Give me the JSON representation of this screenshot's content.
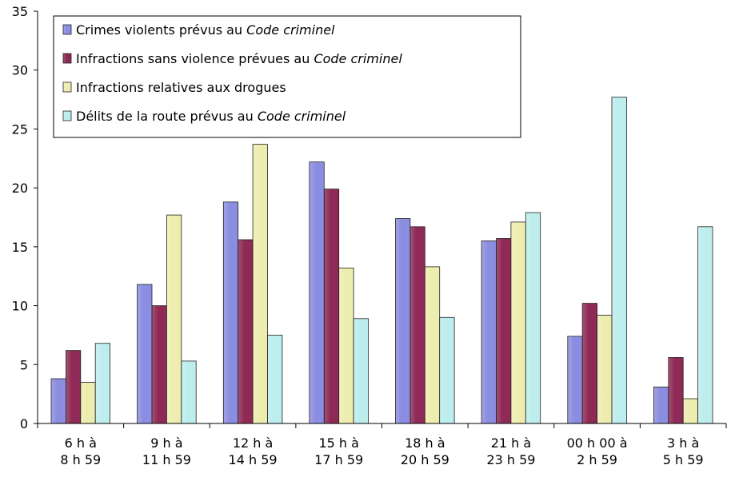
{
  "chart_data": {
    "type": "bar",
    "title": "",
    "xlabel": "",
    "ylabel": "",
    "ylim": [
      0,
      35
    ],
    "y_ticks": [
      "0",
      "5",
      "10",
      "15",
      "20",
      "25",
      "30",
      "35"
    ],
    "grid": false,
    "legend_position": "top-left",
    "categories": [
      [
        "6 h à",
        "8 h 59"
      ],
      [
        "9 h à",
        "11 h 59"
      ],
      [
        "12 h à",
        "14 h 59"
      ],
      [
        "15 h à",
        "17 h 59"
      ],
      [
        "18 h à",
        "20 h 59"
      ],
      [
        "21 h à",
        "23 h 59"
      ],
      [
        "00 h 00 à",
        "2 h 59"
      ],
      [
        "3 h à",
        "5 h 59"
      ]
    ],
    "series": [
      {
        "name": "Crimes violents prévus au Code criminel",
        "name_parts": [
          "Crimes violents prévus au ",
          "Code criminel"
        ],
        "color": "#8B8DE0",
        "values": [
          3.8,
          11.8,
          18.8,
          22.2,
          17.4,
          15.5,
          7.4,
          3.1
        ]
      },
      {
        "name": "Infractions sans violence prévues au Code criminel",
        "name_parts": [
          "Infractions sans violence prévues au ",
          "Code criminel"
        ],
        "color": "#8E2A55",
        "values": [
          6.2,
          10.0,
          15.6,
          19.9,
          16.7,
          15.7,
          10.2,
          5.6
        ]
      },
      {
        "name": "Infractions relatives aux drogues",
        "name_parts": [
          "Infractions relatives aux drogues",
          ""
        ],
        "color": "#EEEDB0",
        "values": [
          3.5,
          17.7,
          23.7,
          13.2,
          13.3,
          17.1,
          9.2,
          2.1
        ]
      },
      {
        "name": "Délits de la route prévus au Code criminel",
        "name_parts": [
          "Délits de la route prévus au ",
          "Code criminel"
        ],
        "color": "#BDEDED",
        "values": [
          6.8,
          5.3,
          7.5,
          8.9,
          9.0,
          17.9,
          27.7,
          16.7
        ]
      }
    ]
  }
}
